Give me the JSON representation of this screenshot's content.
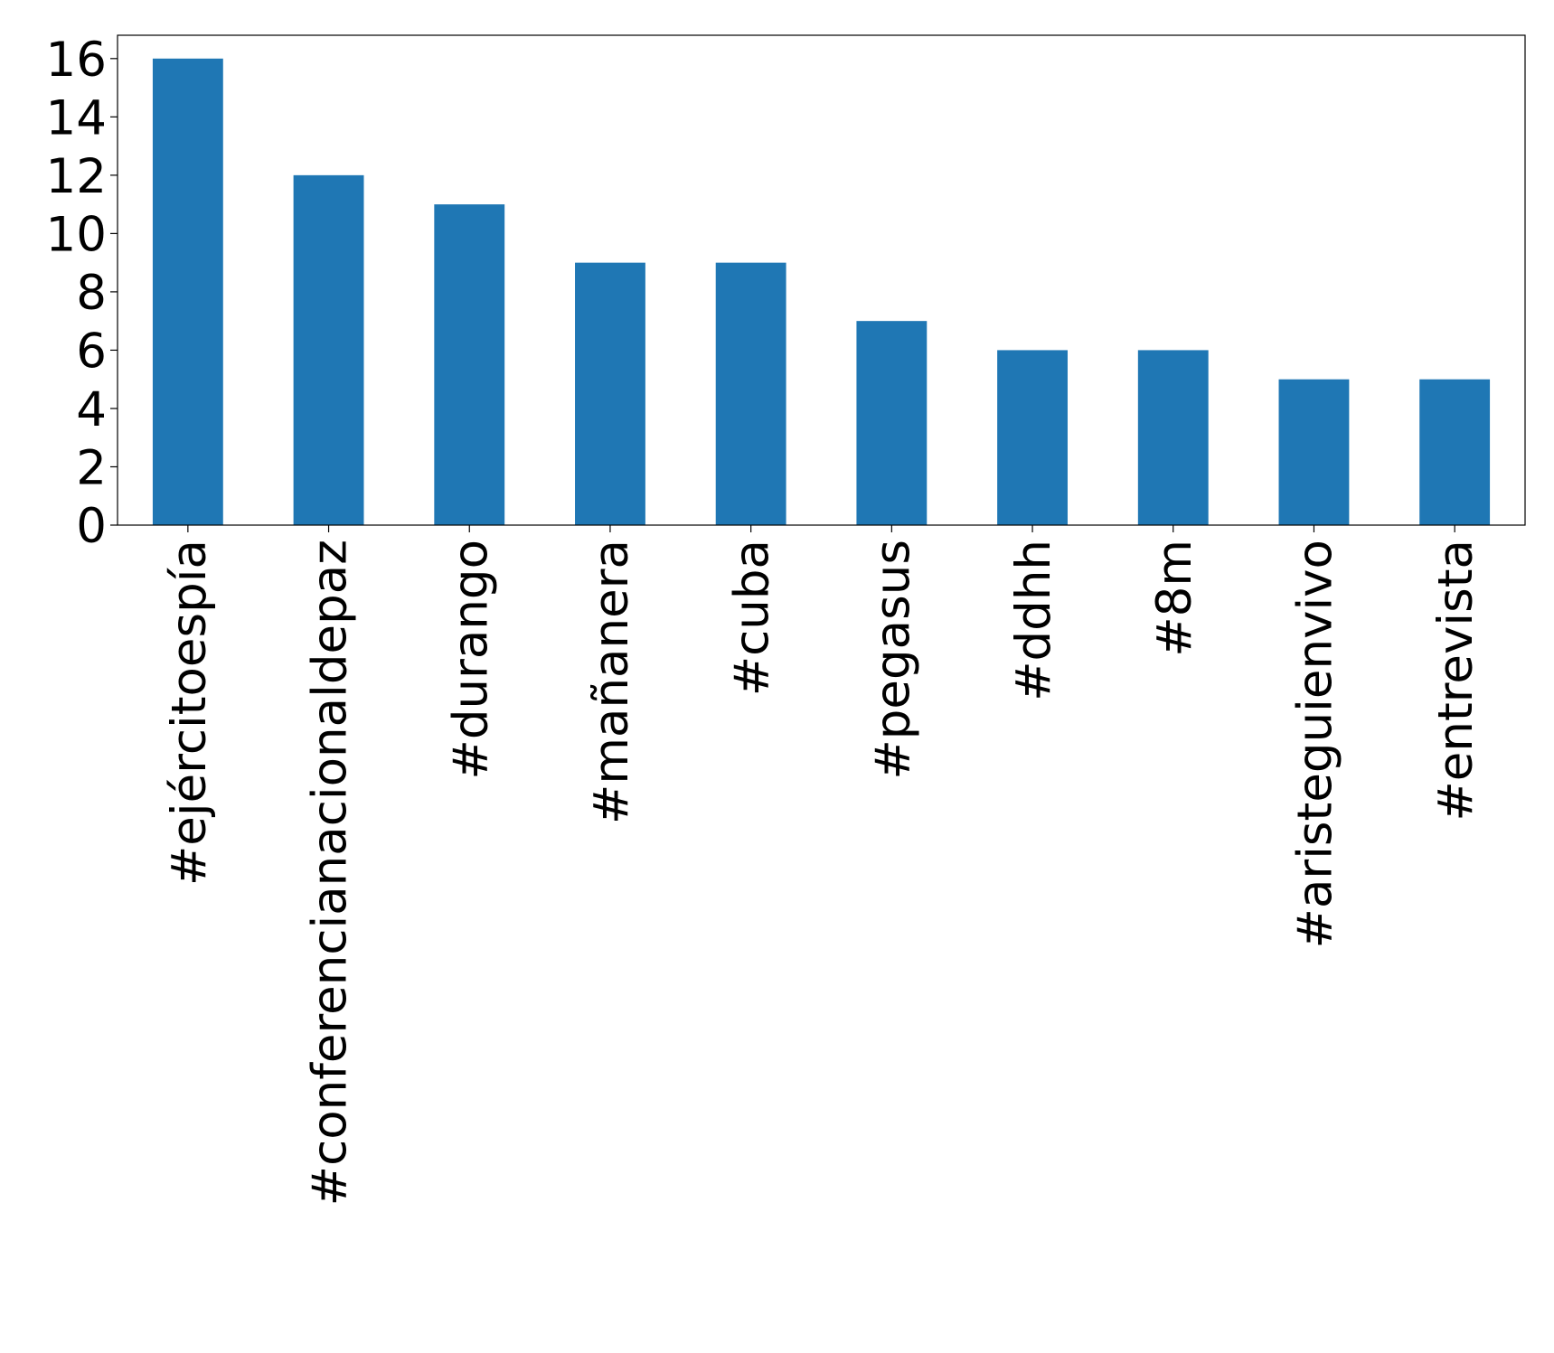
{
  "chart_data": {
    "type": "bar",
    "categories": [
      "#ejércitoespía",
      "#conferencianacionaldepaz",
      "#durango",
      "#mañanera",
      "#cuba",
      "#pegasus",
      "#ddhh",
      "#8m",
      "#aristeguienvivo",
      "#entrevista"
    ],
    "values": [
      16,
      12,
      11,
      9,
      9,
      7,
      6,
      6,
      5,
      5
    ],
    "color": "#1f77b4",
    "ylim": [
      0,
      16.8
    ],
    "yticks": [
      0,
      2,
      4,
      6,
      8,
      10,
      12,
      14,
      16
    ],
    "grid": false
  }
}
